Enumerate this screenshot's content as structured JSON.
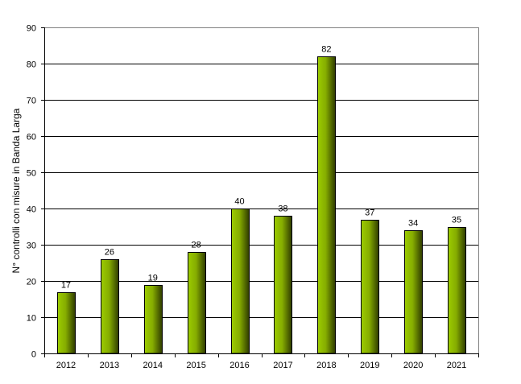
{
  "chart_data": {
    "type": "bar",
    "title": "",
    "xlabel": "",
    "ylabel": "N° controlli con misure in Banda  Larga",
    "categories": [
      "2012",
      "2013",
      "2014",
      "2015",
      "2016",
      "2017",
      "2018",
      "2019",
      "2020",
      "2021"
    ],
    "values": [
      17,
      26,
      19,
      28,
      40,
      38,
      82,
      37,
      34,
      35
    ],
    "ylim": [
      0,
      90
    ],
    "yticks": [
      0,
      10,
      20,
      30,
      40,
      50,
      60,
      70,
      80,
      90
    ],
    "grid": true,
    "legend": null,
    "data_labels": true,
    "colors": {
      "bar_light": "#9ccc00",
      "bar_dark": "#2e3a00",
      "bar_border": "#000000",
      "grid": "#000000",
      "frame": "#808080"
    }
  }
}
